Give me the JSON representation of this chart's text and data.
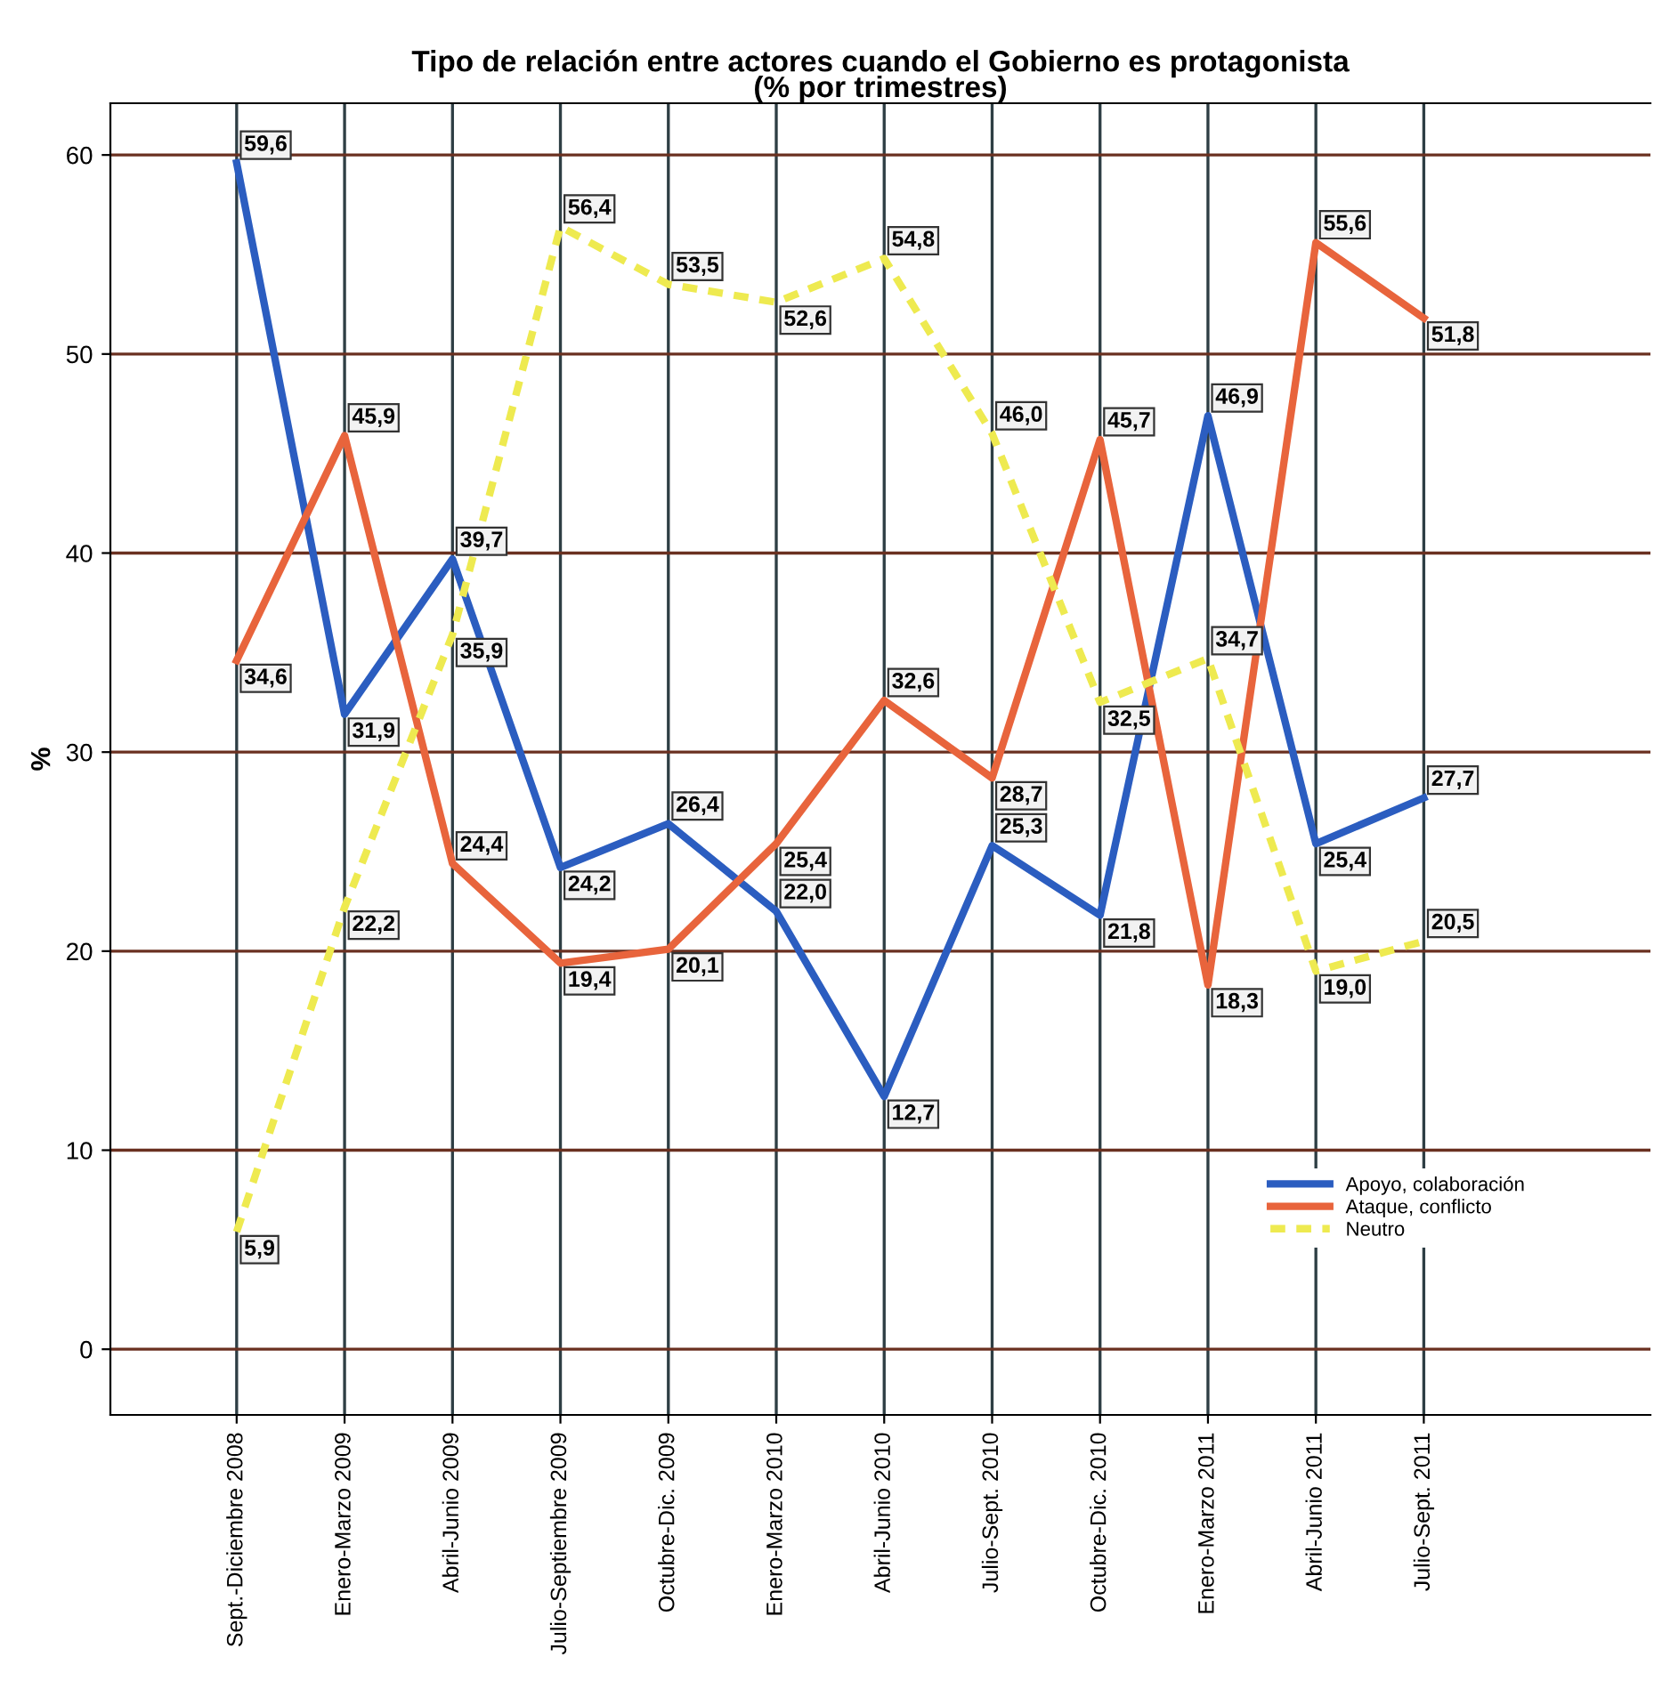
{
  "chart_data": {
    "type": "line",
    "title": "Tipo de relación entre actores cuando el Gobierno es protagonista\n(% por trimestres)",
    "ylabel": "%",
    "categories": [
      "Sept.-Diciembre 2008",
      "Enero-Marzo 2009",
      "Abril-Junio 2009",
      "Julio-Septiembre 2009",
      "Octubre-Dic. 2009",
      "Enero-Marzo 2010",
      "Abril-Junio 2010",
      "Julio-Sept. 2010",
      "Octubre-Dic. 2010",
      "Enero-Marzo 2011",
      "Abril-Junio 2011",
      "Julio-Sept. 2011"
    ],
    "series": [
      {
        "name": "Apoyo, colaboración",
        "color": "#2b5dc0",
        "line_style": "solid",
        "values": [
          59.6,
          31.9,
          39.7,
          24.2,
          26.4,
          22.0,
          12.7,
          25.3,
          21.8,
          46.9,
          25.4,
          27.7
        ],
        "value_labels": [
          "59,6",
          "31,9",
          "39,7",
          "24,2",
          "26,4",
          "22,0",
          "12,7",
          "25,3",
          "21,8",
          "46,9",
          "25,4",
          "27,7"
        ]
      },
      {
        "name": "Ataque, conflicto",
        "color": "#e8643c",
        "line_style": "solid",
        "values": [
          34.6,
          45.9,
          24.4,
          19.4,
          20.1,
          25.4,
          32.6,
          28.7,
          45.7,
          18.3,
          55.6,
          51.8
        ],
        "value_labels": [
          "34,6",
          "45,9",
          "24,4",
          "19,4",
          "20,1",
          "25,4",
          "32,6",
          "28,7",
          "45,7",
          "18,3",
          "55,6",
          "51,8"
        ]
      },
      {
        "name": "Neutro",
        "color": "#eeea50",
        "line_style": "dashed",
        "values": [
          5.9,
          22.2,
          35.9,
          56.4,
          53.5,
          52.6,
          54.8,
          46.0,
          32.5,
          34.7,
          19.0,
          20.5
        ],
        "value_labels": [
          "5,9",
          "22,2",
          "35,9",
          "56,4",
          "53,5",
          "52,6",
          "54,8",
          "46,0",
          "32,5",
          "34,7",
          "19,0",
          "20,5"
        ]
      }
    ],
    "ylim": [
      -3.3,
      62.6
    ],
    "yticks": [
      0,
      10,
      20,
      30,
      40,
      50,
      60
    ],
    "grid": true,
    "legend": "bottom right"
  }
}
